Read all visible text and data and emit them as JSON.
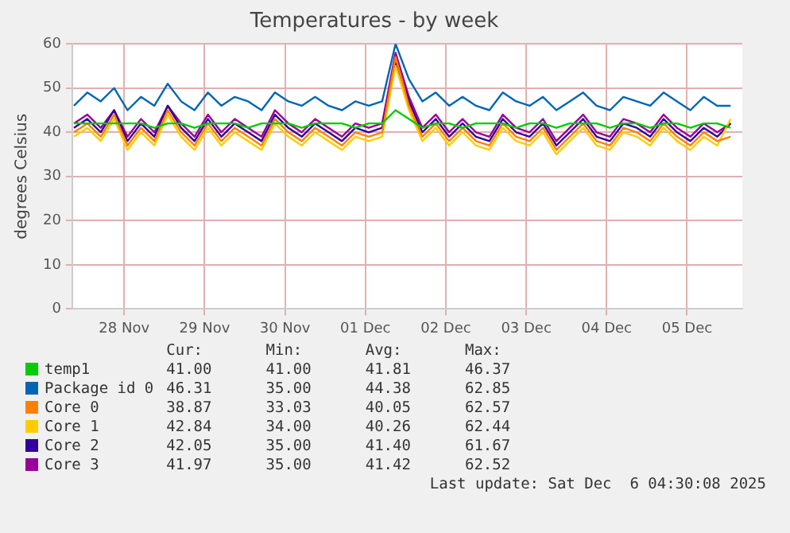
{
  "chart_data": {
    "type": "line",
    "title": "Temperatures - by week",
    "ylabel": "degrees Celsius",
    "x": [
      "2025-11-27T21:00",
      "2025-11-28T01:00",
      "2025-11-28T05:00",
      "2025-11-28T09:00",
      "2025-11-28T13:00",
      "2025-11-28T17:00",
      "2025-11-28T21:00",
      "2025-11-29T01:00",
      "2025-11-29T05:00",
      "2025-11-29T09:00",
      "2025-11-29T13:00",
      "2025-11-29T17:00",
      "2025-11-29T21:00",
      "2025-11-30T01:00",
      "2025-11-30T05:00",
      "2025-11-30T09:00",
      "2025-11-30T13:00",
      "2025-11-30T17:00",
      "2025-11-30T21:00",
      "2025-12-01T01:00",
      "2025-12-01T05:00",
      "2025-12-01T09:00",
      "2025-12-01T13:00",
      "2025-12-01T17:00",
      "2025-12-01T21:00",
      "2025-12-02T01:00",
      "2025-12-02T05:00",
      "2025-12-02T09:00",
      "2025-12-02T13:00",
      "2025-12-02T17:00",
      "2025-12-02T21:00",
      "2025-12-03T01:00",
      "2025-12-03T05:00",
      "2025-12-03T09:00",
      "2025-12-03T13:00",
      "2025-12-03T17:00",
      "2025-12-03T21:00",
      "2025-12-04T01:00",
      "2025-12-04T05:00",
      "2025-12-04T09:00",
      "2025-12-04T13:00",
      "2025-12-04T17:00",
      "2025-12-04T21:00",
      "2025-12-05T01:00",
      "2025-12-05T05:00",
      "2025-12-05T09:00",
      "2025-12-05T13:00",
      "2025-12-05T17:00",
      "2025-12-05T21:00",
      "2025-12-06T01:00"
    ],
    "xlim": [
      "2025-11-27T20:30",
      "2025-12-06T04:30"
    ],
    "xticks": [
      {
        "value": "2025-11-28T12:00",
        "label": "28 Nov"
      },
      {
        "value": "2025-11-29T12:00",
        "label": "29 Nov"
      },
      {
        "value": "2025-11-30T12:00",
        "label": "30 Nov"
      },
      {
        "value": "2025-12-01T12:00",
        "label": "01 Dec"
      },
      {
        "value": "2025-12-02T12:00",
        "label": "02 Dec"
      },
      {
        "value": "2025-12-03T12:00",
        "label": "03 Dec"
      },
      {
        "value": "2025-12-04T12:00",
        "label": "04 Dec"
      },
      {
        "value": "2025-12-05T12:00",
        "label": "05 Dec"
      }
    ],
    "ylim": [
      0,
      60
    ],
    "yticks": [
      0,
      10,
      20,
      30,
      40,
      50,
      60
    ],
    "grid": true,
    "legend": "bottom",
    "series": [
      {
        "name": "temp1",
        "color": "#00cc00",
        "values": [
          42,
          42,
          42,
          42,
          42,
          42,
          41,
          42,
          42,
          41,
          42,
          42,
          42,
          41,
          42,
          42,
          42,
          41,
          42,
          42,
          42,
          41,
          42,
          42,
          45,
          43,
          41,
          42,
          42,
          41,
          42,
          42,
          42,
          41,
          42,
          42,
          41,
          42,
          42,
          42,
          41,
          42,
          42,
          41,
          42,
          42,
          41,
          42,
          42,
          41
        ]
      },
      {
        "name": "Package id 0",
        "color": "#0066b3",
        "values": [
          46,
          49,
          47,
          50,
          45,
          48,
          46,
          51,
          47,
          45,
          49,
          46,
          48,
          47,
          45,
          49,
          47,
          46,
          48,
          46,
          45,
          47,
          46,
          47,
          60,
          52,
          47,
          49,
          46,
          48,
          46,
          45,
          49,
          47,
          46,
          48,
          45,
          47,
          49,
          46,
          45,
          48,
          47,
          46,
          49,
          47,
          45,
          48,
          46,
          46
        ]
      },
      {
        "name": "Core 0",
        "color": "#ff8000",
        "values": [
          40,
          42,
          39,
          44,
          37,
          41,
          38,
          45,
          40,
          37,
          42,
          38,
          41,
          39,
          37,
          43,
          40,
          38,
          41,
          39,
          37,
          40,
          39,
          40,
          57,
          46,
          39,
          42,
          38,
          41,
          38,
          37,
          42,
          39,
          38,
          41,
          36,
          39,
          42,
          38,
          37,
          41,
          40,
          38,
          42,
          39,
          37,
          40,
          38,
          39
        ]
      },
      {
        "name": "Core 1",
        "color": "#ffcc00",
        "values": [
          39,
          41,
          38,
          43,
          36,
          40,
          37,
          44,
          39,
          36,
          41,
          37,
          40,
          38,
          36,
          42,
          39,
          37,
          40,
          38,
          36,
          39,
          38,
          39,
          55,
          45,
          38,
          41,
          37,
          40,
          37,
          36,
          41,
          38,
          37,
          40,
          35,
          38,
          41,
          37,
          36,
          40,
          39,
          37,
          41,
          38,
          36,
          39,
          37,
          43
        ]
      },
      {
        "name": "Core 2",
        "color": "#330099",
        "values": [
          41,
          43,
          40,
          45,
          38,
          42,
          39,
          46,
          41,
          38,
          43,
          39,
          42,
          40,
          38,
          44,
          41,
          39,
          42,
          40,
          38,
          41,
          40,
          41,
          56,
          47,
          40,
          43,
          39,
          42,
          39,
          38,
          43,
          40,
          39,
          42,
          37,
          40,
          43,
          39,
          38,
          42,
          41,
          39,
          43,
          40,
          38,
          41,
          39,
          42
        ]
      },
      {
        "name": "Core 3",
        "color": "#990099",
        "values": [
          42,
          44,
          41,
          45,
          39,
          43,
          40,
          46,
          42,
          39,
          44,
          40,
          43,
          41,
          39,
          45,
          42,
          40,
          43,
          41,
          39,
          42,
          41,
          42,
          58,
          48,
          41,
          44,
          40,
          43,
          40,
          39,
          44,
          41,
          40,
          43,
          38,
          41,
          44,
          40,
          39,
          43,
          42,
          40,
          44,
          41,
          39,
          42,
          40,
          42
        ]
      }
    ],
    "annotations": [
      "Cur:",
      "Min:",
      "Avg:",
      "Max:",
      "41.00",
      "41.00",
      "41.81",
      "46.37",
      "46.31",
      "35.00",
      "44.38",
      "62.85",
      "38.87",
      "33.03",
      "40.05",
      "62.57",
      "42.84",
      "34.00",
      "40.26",
      "62.44",
      "42.05",
      "35.00",
      "41.40",
      "61.67",
      "41.97",
      "35.00",
      "41.42",
      "62.52",
      "Last update: Sat Dec  6 04:30:08 2025"
    ]
  }
}
